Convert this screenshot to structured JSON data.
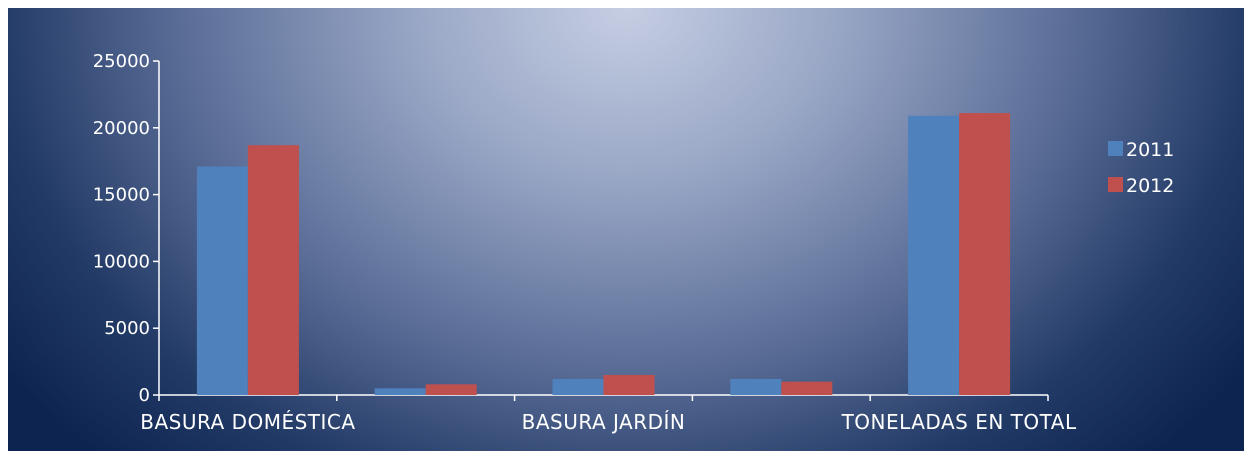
{
  "chart_data": {
    "type": "bar",
    "categories": [
      "BASURA DOMÉSTICA",
      "",
      "BASURA JARDÍN",
      "",
      "TONELADAS EN TOTAL"
    ],
    "series": [
      {
        "name": "2011",
        "color": "#4f81bd",
        "values": [
          17100,
          500,
          1200,
          1200,
          20900
        ]
      },
      {
        "name": "2012",
        "color": "#c0504d",
        "values": [
          18700,
          800,
          1500,
          1000,
          21100
        ]
      }
    ],
    "ylim": [
      0,
      25000
    ],
    "yticks": [
      0,
      5000,
      10000,
      15000,
      20000,
      25000
    ],
    "ytick_labels": [
      "0",
      "5000",
      "10000",
      "15000",
      "20000",
      "25000"
    ],
    "grid": false,
    "legend_position": "right",
    "title": "",
    "xlabel": "",
    "ylabel": ""
  }
}
